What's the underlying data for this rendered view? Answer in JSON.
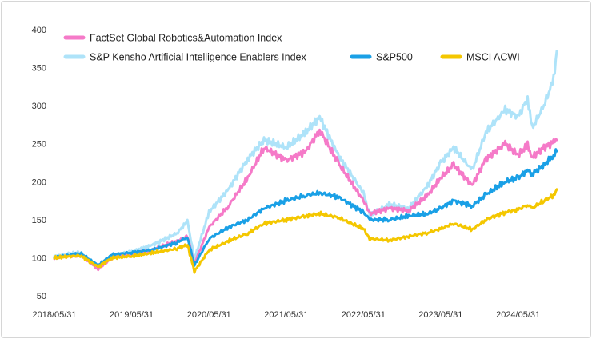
{
  "chart_data": {
    "type": "line",
    "title": "",
    "xlabel": "",
    "ylabel": "",
    "x_range": [
      "2018/05/31",
      "2024/11/30"
    ],
    "x_ticks": [
      "2018/05/31",
      "2019/05/31",
      "2020/05/31",
      "2021/05/31",
      "2022/05/31",
      "2023/05/31",
      "2024/05/31"
    ],
    "ylim": [
      50,
      400
    ],
    "y_ticks": [
      50,
      100,
      150,
      200,
      250,
      300,
      350,
      400
    ],
    "grid": false,
    "legend": {
      "position": "top-left",
      "rows": 2
    },
    "x": [
      "2018/05/31",
      "2018/09/30",
      "2018/12/24",
      "2019/02/28",
      "2019/05/31",
      "2019/08/31",
      "2019/12/31",
      "2020/02/19",
      "2020/03/23",
      "2020/05/31",
      "2020/08/31",
      "2020/11/30",
      "2021/02/15",
      "2021/05/31",
      "2021/08/31",
      "2021/11/05",
      "2022/01/31",
      "2022/05/31",
      "2022/06/30",
      "2022/09/30",
      "2022/12/31",
      "2023/03/31",
      "2023/05/31",
      "2023/07/31",
      "2023/10/27",
      "2023/12/31",
      "2024/03/31",
      "2024/05/31",
      "2024/07/15",
      "2024/08/05",
      "2024/09/30",
      "2024/11/15",
      "2024/11/30"
    ],
    "series": [
      {
        "name": "FactSet Global Robotics&Automation Index",
        "color": "#f57ac8",
        "values": [
          100,
          104,
          85,
          100,
          105,
          110,
          122,
          128,
          92,
          140,
          168,
          205,
          245,
          228,
          240,
          268,
          225,
          175,
          158,
          165,
          162,
          182,
          205,
          222,
          195,
          230,
          250,
          235,
          248,
          232,
          245,
          252,
          255
        ]
      },
      {
        "name": "S&P Kensho Artificial Intelligence Enablers Index",
        "color": "#aee3f9",
        "values": [
          102,
          107,
          86,
          102,
          108,
          116,
          132,
          148,
          98,
          160,
          190,
          230,
          255,
          245,
          265,
          285,
          235,
          185,
          155,
          170,
          165,
          195,
          225,
          245,
          215,
          265,
          295,
          285,
          310,
          270,
          300,
          335,
          372
        ]
      },
      {
        "name": "S&P500",
        "color": "#1aa0e6",
        "values": [
          100,
          106,
          90,
          104,
          107,
          110,
          120,
          127,
          90,
          125,
          140,
          150,
          165,
          175,
          182,
          185,
          180,
          160,
          150,
          150,
          155,
          158,
          165,
          175,
          168,
          183,
          200,
          205,
          215,
          210,
          222,
          235,
          240
        ]
      },
      {
        "name": "MSCI ACWI",
        "color": "#f4c700",
        "values": [
          100,
          103,
          88,
          100,
          102,
          106,
          112,
          117,
          82,
          110,
          122,
          132,
          145,
          150,
          155,
          158,
          153,
          138,
          125,
          123,
          128,
          133,
          138,
          145,
          137,
          150,
          160,
          163,
          170,
          165,
          175,
          182,
          190
        ]
      }
    ]
  }
}
